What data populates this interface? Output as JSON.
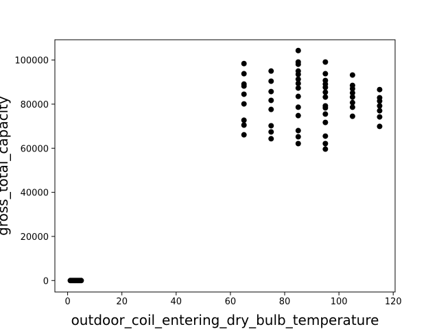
{
  "chart_data": {
    "type": "scatter",
    "x_label": "outdoor_coil_entering_dry_bulb_temperature",
    "y_label": "gross_total_capacity",
    "xlim": [
      -4.7,
      120.7
    ],
    "ylim": [
      -5200,
      109200
    ],
    "xticks": [
      0,
      20,
      40,
      60,
      80,
      100,
      120
    ],
    "yticks": [
      0,
      20000,
      40000,
      60000,
      80000,
      100000
    ],
    "series": [
      {
        "color": "#000000",
        "x": [
          1,
          1.5,
          2,
          2.5,
          3,
          3.5,
          4,
          4.5,
          5,
          65,
          65,
          65,
          65,
          65,
          65,
          65,
          65,
          65,
          75,
          75,
          75,
          75,
          75,
          75,
          75,
          75,
          85,
          85,
          85,
          85,
          85,
          85,
          85,
          85,
          85,
          85,
          85,
          85,
          85,
          85,
          95,
          95,
          95,
          95,
          95,
          95,
          95,
          95,
          95,
          95,
          95,
          95,
          95,
          95,
          105,
          105,
          105,
          105,
          105,
          105,
          105,
          105,
          115,
          115,
          115,
          115,
          115,
          115,
          115
        ],
        "values": [
          0,
          0,
          0,
          0,
          0,
          0,
          0,
          0,
          0,
          98400,
          93800,
          89100,
          88200,
          84500,
          80100,
          72700,
          70500,
          66100,
          95000,
          90400,
          85700,
          81700,
          77600,
          70200,
          67400,
          64300,
          104300,
          99100,
          98100,
          95000,
          93500,
          91300,
          89400,
          87300,
          83500,
          78600,
          74800,
          68000,
          65200,
          62100,
          99100,
          93800,
          90700,
          89100,
          87600,
          85400,
          83200,
          79200,
          78300,
          75500,
          71700,
          65500,
          62100,
          59600,
          93200,
          88500,
          87000,
          85100,
          83200,
          80700,
          78600,
          74500,
          86600,
          82900,
          81400,
          79200,
          77000,
          74200,
          69900
        ]
      }
    ]
  }
}
